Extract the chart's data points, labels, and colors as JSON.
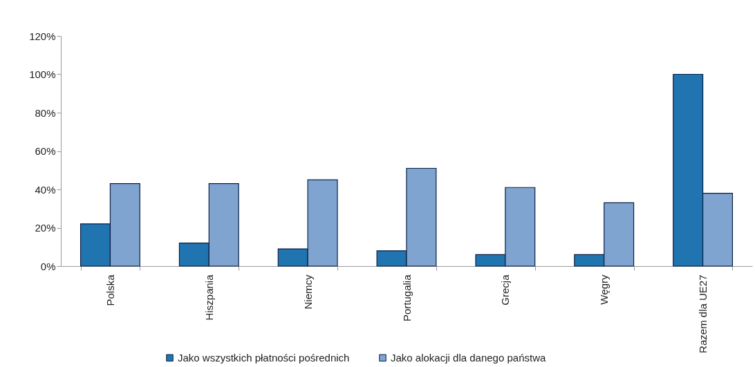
{
  "chart_data": {
    "type": "bar",
    "categories": [
      "Polska",
      "Hiszpania",
      "Niemcy",
      "Portugalia",
      "Grecja",
      "Węgry",
      "Razem dla UE27"
    ],
    "series": [
      {
        "name": "Jako wszystkich płatności pośrednich",
        "color": "#2074b0",
        "values": [
          22,
          12,
          9,
          8,
          6,
          6,
          100
        ]
      },
      {
        "name": "Jako alokacji dla danego państwa",
        "color": "#7fa4d0",
        "values": [
          43,
          43,
          45,
          51,
          41,
          33,
          38
        ]
      }
    ],
    "ylim": [
      0,
      120
    ],
    "yticks": [
      {
        "value": 0,
        "label": "0%"
      },
      {
        "value": 20,
        "label": "20%"
      },
      {
        "value": 40,
        "label": "40%"
      },
      {
        "value": 60,
        "label": "60%"
      },
      {
        "value": 80,
        "label": "80%"
      },
      {
        "value": 100,
        "label": "100%"
      },
      {
        "value": 120,
        "label": "120%"
      }
    ],
    "grid": false,
    "legend": "bottom"
  }
}
